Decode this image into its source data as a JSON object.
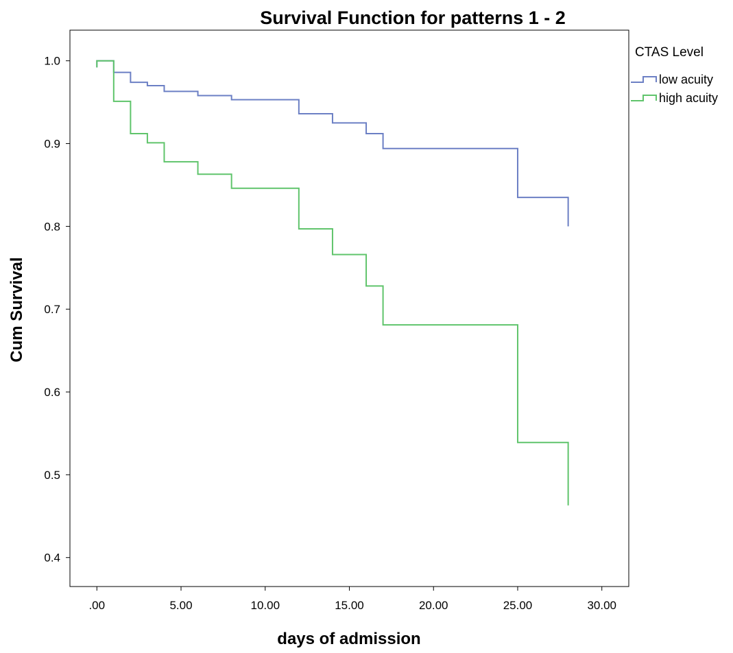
{
  "chart_data": {
    "type": "line",
    "title": "Survival Function for patterns 1 - 2",
    "xlabel": "days of admission",
    "ylabel": "Cum Survival",
    "xlim": [
      -1.6,
      31.6
    ],
    "ylim": [
      0.365,
      1.037
    ],
    "xticks": [
      {
        "value": 0,
        "label": ".00"
      },
      {
        "value": 5,
        "label": "5.00"
      },
      {
        "value": 10,
        "label": "10.00"
      },
      {
        "value": 15,
        "label": "15.00"
      },
      {
        "value": 20,
        "label": "20.00"
      },
      {
        "value": 25,
        "label": "25.00"
      },
      {
        "value": 30,
        "label": "30.00"
      }
    ],
    "yticks": [
      {
        "value": 0.4,
        "label": "0.4"
      },
      {
        "value": 0.5,
        "label": "0.5"
      },
      {
        "value": 0.6,
        "label": "0.6"
      },
      {
        "value": 0.7,
        "label": "0.7"
      },
      {
        "value": 0.8,
        "label": "0.8"
      },
      {
        "value": 0.9,
        "label": "0.9"
      },
      {
        "value": 1.0,
        "label": "1.0"
      }
    ],
    "grid": false,
    "step": true,
    "legend_title": "CTAS Level",
    "legend_position": "right",
    "series": [
      {
        "name": "low acuity",
        "color": "#6b7fc4",
        "x": [
          0,
          1,
          2,
          3,
          4,
          6,
          8,
          12,
          14,
          16,
          17,
          25,
          28
        ],
        "y": [
          1.0,
          0.986,
          0.974,
          0.97,
          0.963,
          0.958,
          0.953,
          0.936,
          0.925,
          0.912,
          0.894,
          0.835,
          0.8
        ]
      },
      {
        "name": "high acuity",
        "color": "#5fc46b",
        "x": [
          0,
          1,
          2,
          3,
          4,
          6,
          8,
          12,
          14,
          16,
          17,
          25,
          28
        ],
        "y": [
          1.0,
          0.951,
          0.912,
          0.901,
          0.878,
          0.863,
          0.846,
          0.797,
          0.766,
          0.728,
          0.681,
          0.539,
          0.463
        ]
      }
    ]
  }
}
